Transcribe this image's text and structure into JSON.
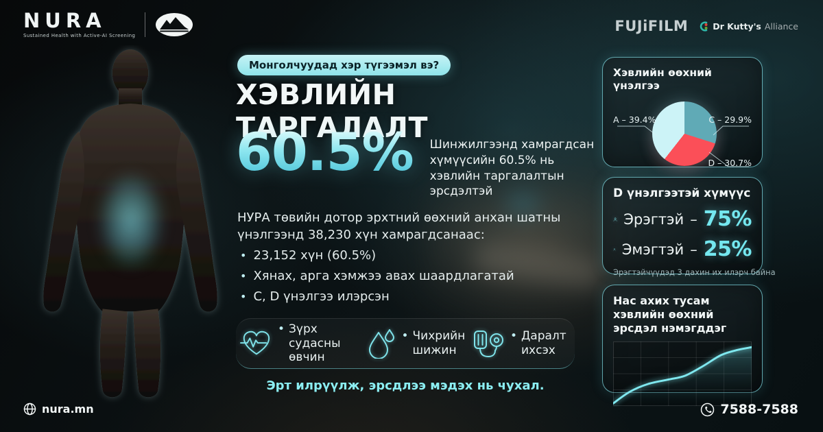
{
  "colors": {
    "accent": "#7fe3ea",
    "value_cyan": "#74e7ef",
    "badge_bg": "#b7f0f4",
    "pie_a": "#ccf3f7",
    "pie_c": "#60aab6",
    "pie_d": "#fb4f58",
    "panel_border": "#84e2eb"
  },
  "header": {
    "nura": {
      "name": "NURA",
      "tagline": "Sustained Health with Active-AI Screening",
      "logo_icon": "mountain-logo-icon"
    },
    "partners": {
      "fujifilm": "FUJiFILM",
      "kutty_bold": "Dr Kutty's",
      "kutty_light": "Alliance"
    }
  },
  "main": {
    "badge": "Монголчуудад хэр түгээмэл вэ?",
    "title": "ХЭВЛИЙН ТАРГАЛАЛТ",
    "stat": {
      "value": "60.5%",
      "description": "Шинжилгээнд хамрагдсан хүмүүсийн 60.5% нь хэвлийн таргалалтын эрсдэлтэй"
    },
    "paragraph": "НУРА төвийн дотор эрхтний өөхний анхан шатны үнэлгээнд 38,230 хүн хамрагдсанаас:",
    "bullet_char": "•",
    "bullets": [
      "23,152 хүн (60.5%)",
      "Хянах, арга хэмжээ авах шаардлагатай",
      "C, D үнэлгээ илэрсэн"
    ],
    "risks": [
      {
        "icon": "heart-ecg-icon",
        "label": "Зүрх судасны өвчин"
      },
      {
        "icon": "water-drop-icon",
        "label": "Чихрийн шижин"
      },
      {
        "icon": "blood-pressure-icon",
        "label": "Даралт ихсэх"
      }
    ],
    "footnote": "Эрт илрүүлж, эрсдлээ мэдэх нь чухал."
  },
  "panels": {
    "assessment": {
      "title": "Хэвлийн өөхний үнэлгээ",
      "callouts": [
        {
          "id": "A",
          "text": "A – 39.4%"
        },
        {
          "id": "C",
          "text": "C – 29.9%"
        },
        {
          "id": "D",
          "text": "D – 30.7%"
        }
      ]
    },
    "d_grade": {
      "title": "D үнэлгээтэй хүмүүс",
      "rows": [
        {
          "icon": "male-avatar-icon",
          "label": "Эрэгтэй",
          "dash": "–",
          "value": "75%"
        },
        {
          "icon": "female-avatar-icon",
          "label": "Эмэгтэй",
          "dash": "–",
          "value": "25%"
        }
      ],
      "caption": "Эрэгтэйчүүдэд 3 дахин их илэрч байна"
    },
    "age_trend": {
      "title": "Нас ахих тусам хэвлийн өөхний эрсдэл нэмэгддэг"
    }
  },
  "footer": {
    "website": "nura.mn",
    "website_icon": "globe-icon",
    "phone": "7588-7588",
    "phone_icon": "phone-icon"
  },
  "chart_data": [
    {
      "type": "pie",
      "title": "Хэвлийн өөхний үнэлгээ",
      "slices": [
        {
          "label": "C",
          "value": 29.9,
          "color": "#60aab6"
        },
        {
          "label": "D",
          "value": 30.7,
          "color": "#fb4f58"
        },
        {
          "label": "A",
          "value": 39.4,
          "color": "#ccf3f7"
        }
      ],
      "start_angle_deg": 0,
      "direction": "clockwise",
      "legend_position": "callouts"
    },
    {
      "type": "line",
      "title": "Нас ахих тусам хэвлийн өөхний эрсдэл нэмэгддэг",
      "xlabel": "",
      "ylabel": "",
      "axis_tick_labels_visible": false,
      "grid": {
        "vertical_divisions": 5,
        "horizontal_divisions": 4
      },
      "points_pct": [
        [
          0,
          4
        ],
        [
          12,
          22
        ],
        [
          25,
          34
        ],
        [
          40,
          41
        ],
        [
          52,
          47
        ],
        [
          65,
          62
        ],
        [
          78,
          79
        ],
        [
          90,
          87
        ],
        [
          100,
          91
        ]
      ],
      "line_color": "#7fe8ef",
      "area_fill": "teal-gradient"
    }
  ]
}
